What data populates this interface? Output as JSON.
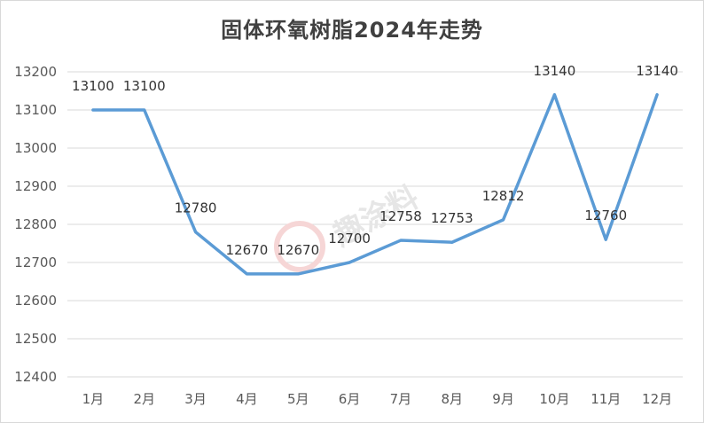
{
  "chart_data": {
    "type": "line",
    "title": "固体环氧树脂2024年走势",
    "xlabel": "",
    "ylabel": "",
    "categories": [
      "1月",
      "2月",
      "3月",
      "4月",
      "5月",
      "6月",
      "7月",
      "8月",
      "9月",
      "10月",
      "11月",
      "12月"
    ],
    "series": [
      {
        "name": "",
        "values": [
          13100,
          13100,
          12780,
          12670,
          12670,
          12700,
          12758,
          12753,
          12812,
          13140,
          12760,
          13140
        ]
      }
    ],
    "data_labels": [
      "13100",
      "13100",
      "12780",
      "12670",
      "12670",
      "12700",
      "12758",
      "12753",
      "12812",
      "13140",
      "12760",
      "13140"
    ],
    "ylim": [
      12400,
      13200
    ],
    "yticks": [
      12400,
      12500,
      12600,
      12700,
      12800,
      12900,
      13000,
      13100,
      13200
    ],
    "grid": true,
    "legend": "none",
    "colors": {
      "line": "#5b9bd5",
      "grid": "#d9d9d9",
      "text": "#595959"
    },
    "watermark": "趣涂料"
  }
}
